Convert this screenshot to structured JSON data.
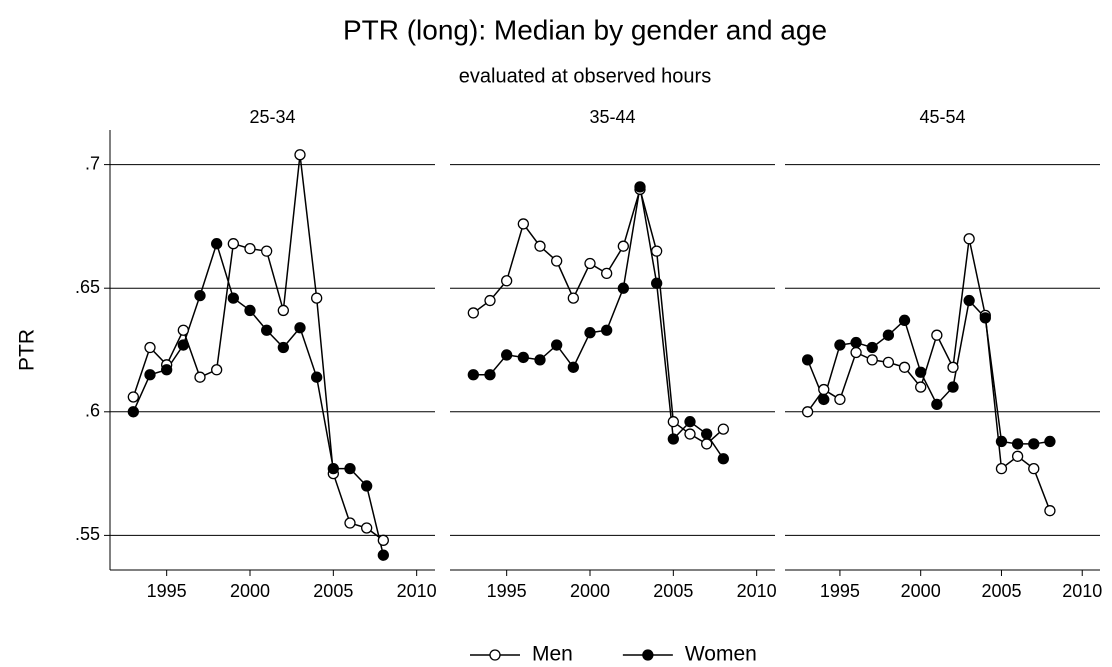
{
  "title": "PTR (long): Median by gender and age",
  "subtitle": "evaluated at observed hours",
  "ylabel": "PTR",
  "chart_data": [
    {
      "type": "line",
      "title": "25-34",
      "x": [
        1993,
        1994,
        1995,
        1996,
        1997,
        1998,
        1999,
        2000,
        2001,
        2002,
        2003,
        2004,
        2005,
        2006,
        2007,
        2008
      ],
      "xlim": [
        1991.6,
        2011.1
      ],
      "xticks": [
        1995,
        2000,
        2005,
        2010
      ],
      "ylim": [
        0.536,
        0.714
      ],
      "yticks": [
        {
          "value": 0.55,
          "label": ".55"
        },
        {
          "value": 0.6,
          "label": ".6"
        },
        {
          "value": 0.65,
          "label": ".65"
        },
        {
          "value": 0.7,
          "label": ".7"
        }
      ],
      "grid": true,
      "series": [
        {
          "name": "Men",
          "color": "#000000",
          "marker_fill": "#ffffff",
          "values": [
            0.606,
            0.626,
            0.619,
            0.633,
            0.614,
            0.617,
            0.668,
            0.666,
            0.665,
            0.641,
            0.704,
            0.646,
            0.575,
            0.555,
            0.553,
            0.548
          ]
        },
        {
          "name": "Women",
          "color": "#000000",
          "marker_fill": "#000000",
          "values": [
            0.6,
            0.615,
            0.617,
            0.627,
            0.647,
            0.668,
            0.646,
            0.641,
            0.633,
            0.626,
            0.634,
            0.614,
            0.577,
            0.577,
            0.57,
            0.542
          ]
        }
      ]
    },
    {
      "type": "line",
      "title": "35-44",
      "x": [
        1993,
        1994,
        1995,
        1996,
        1997,
        1998,
        1999,
        2000,
        2001,
        2002,
        2003,
        2004,
        2005,
        2006,
        2007,
        2008
      ],
      "xlim": [
        1991.6,
        2011.1
      ],
      "xticks": [
        1995,
        2000,
        2005,
        2010
      ],
      "ylim": [
        0.536,
        0.714
      ],
      "yticks": [
        {
          "value": 0.55,
          "label": ".55"
        },
        {
          "value": 0.6,
          "label": ".6"
        },
        {
          "value": 0.65,
          "label": ".65"
        },
        {
          "value": 0.7,
          "label": ".7"
        }
      ],
      "grid": true,
      "series": [
        {
          "name": "Men",
          "color": "#000000",
          "marker_fill": "#ffffff",
          "values": [
            0.64,
            0.645,
            0.653,
            0.676,
            0.667,
            0.661,
            0.646,
            0.66,
            0.656,
            0.667,
            0.69,
            0.665,
            0.596,
            0.591,
            0.587,
            0.593
          ]
        },
        {
          "name": "Women",
          "color": "#000000",
          "marker_fill": "#000000",
          "values": [
            0.615,
            0.615,
            0.623,
            0.622,
            0.621,
            0.627,
            0.618,
            0.632,
            0.633,
            0.65,
            0.691,
            0.652,
            0.589,
            0.596,
            0.591,
            0.581
          ]
        }
      ]
    },
    {
      "type": "line",
      "title": "45-54",
      "x": [
        1993,
        1994,
        1995,
        1996,
        1997,
        1998,
        1999,
        2000,
        2001,
        2002,
        2003,
        2004,
        2005,
        2006,
        2007,
        2008
      ],
      "xlim": [
        1991.6,
        2011.1
      ],
      "xticks": [
        1995,
        2000,
        2005,
        2010
      ],
      "ylim": [
        0.536,
        0.714
      ],
      "yticks": [
        {
          "value": 0.55,
          "label": ".55"
        },
        {
          "value": 0.6,
          "label": ".6"
        },
        {
          "value": 0.65,
          "label": ".65"
        },
        {
          "value": 0.7,
          "label": ".7"
        }
      ],
      "grid": true,
      "series": [
        {
          "name": "Men",
          "color": "#000000",
          "marker_fill": "#ffffff",
          "values": [
            0.6,
            0.609,
            0.605,
            0.624,
            0.621,
            0.62,
            0.618,
            0.61,
            0.631,
            0.618,
            0.67,
            0.639,
            0.577,
            0.582,
            0.577,
            0.56
          ]
        },
        {
          "name": "Women",
          "color": "#000000",
          "marker_fill": "#000000",
          "values": [
            0.621,
            0.605,
            0.627,
            0.628,
            0.626,
            0.631,
            0.637,
            0.616,
            0.603,
            0.61,
            0.645,
            0.638,
            0.588,
            0.587,
            0.587,
            0.588
          ]
        }
      ]
    }
  ]
}
